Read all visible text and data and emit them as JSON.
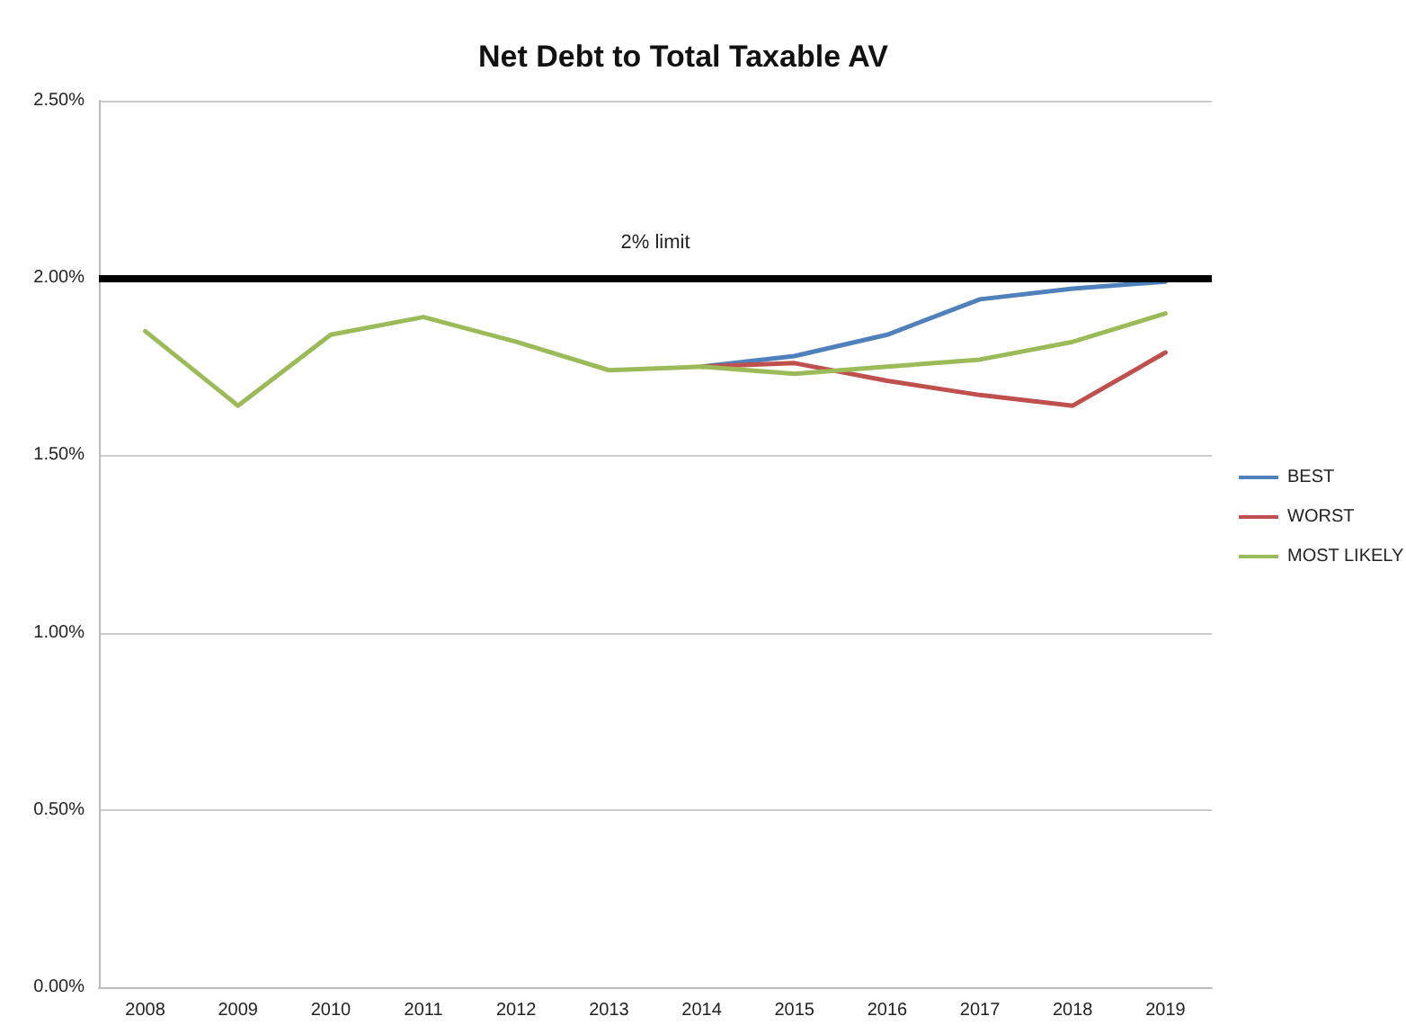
{
  "chart_data": {
    "type": "line",
    "title": "Net Debt to Total Taxable AV",
    "categories": [
      "2008",
      "2009",
      "2010",
      "2011",
      "2012",
      "2013",
      "2014",
      "2015",
      "2016",
      "2017",
      "2018",
      "2019"
    ],
    "series": [
      {
        "name": "BEST",
        "color": "#4f81bd",
        "values": [
          null,
          null,
          null,
          null,
          null,
          null,
          1.75,
          1.78,
          1.84,
          1.94,
          1.97,
          1.99
        ]
      },
      {
        "name": "WORST",
        "color": "#c0504d",
        "values": [
          null,
          null,
          null,
          null,
          null,
          null,
          1.75,
          1.76,
          1.71,
          1.67,
          1.64,
          1.79
        ]
      },
      {
        "name": "MOST LIKELY",
        "color": "#9bbb59",
        "values": [
          1.85,
          1.64,
          1.84,
          1.89,
          1.82,
          1.74,
          1.75,
          1.73,
          1.75,
          1.77,
          1.82,
          1.9
        ]
      }
    ],
    "ylim": [
      0,
      2.5
    ],
    "yticks": [
      {
        "value": 0,
        "label": "0.00%"
      },
      {
        "value": 0.5,
        "label": "0.50%"
      },
      {
        "value": 1,
        "label": "1.00%"
      },
      {
        "value": 1.5,
        "label": "1.50%"
      },
      {
        "value": 2,
        "label": "2.00%"
      },
      {
        "value": 2.5,
        "label": "2.50%"
      }
    ],
    "ref_lines": [
      {
        "axis": "y",
        "value": 2,
        "label": "2% limit",
        "color": "#000000"
      }
    ],
    "grid": "y",
    "legend": "right",
    "marker": "none",
    "line_style": "solid"
  }
}
